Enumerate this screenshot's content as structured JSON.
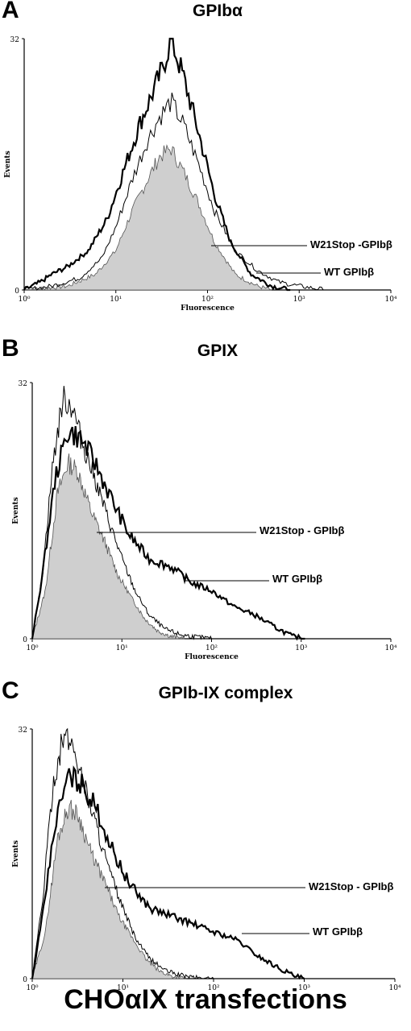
{
  "panels": [
    {
      "letter": "A",
      "title": "GPIbα",
      "ylabel": "Events",
      "xlabel": "Fluorescence",
      "annotations": [
        "W21Stop -GPIbβ",
        "WT GPIbβ"
      ]
    },
    {
      "letter": "B",
      "title": "GPIX",
      "ylabel": "Events",
      "xlabel": "Fluorescence",
      "annotations": [
        "W21Stop - GPIbβ",
        "WT GPIbβ"
      ]
    },
    {
      "letter": "C",
      "title": "GPIb-IX complex",
      "ylabel": "Events",
      "xlabel": "Fluorescence",
      "annotations": [
        "W21Stop - GPIbβ",
        "WT GPIbβ"
      ]
    }
  ],
  "footer": "CHOαIX transfections",
  "colors": {
    "filled": "#cfcfcf",
    "line": "#000000",
    "background": "#ffffff"
  },
  "chart_data": [
    {
      "type": "area",
      "title": "GPIbα",
      "xlabel": "Fluorescence",
      "ylabel": "Events",
      "xscale": "log",
      "xlim": [
        1,
        10000
      ],
      "ylim": [
        0,
        32
      ],
      "x_tick_labels": [
        "10⁰",
        "10¹",
        "10²",
        "10³",
        "10⁴"
      ],
      "y_tick_labels": [
        "0",
        "32"
      ],
      "series": [
        {
          "name": "W21Stop -GPIbβ",
          "style": "thick line",
          "x": [
            1,
            1.5,
            2,
            3,
            5,
            8,
            12,
            18,
            25,
            32,
            40,
            55,
            80,
            120,
            180,
            300,
            500,
            800
          ],
          "y": [
            0,
            1,
            2,
            3,
            5,
            9,
            15,
            21,
            25,
            28,
            32,
            27,
            20,
            12,
            6,
            2,
            0.5,
            0
          ]
        },
        {
          "name": "WT GPIbβ",
          "style": "thin line",
          "x": [
            1,
            2,
            4,
            7,
            10,
            15,
            22,
            30,
            40,
            55,
            80,
            120,
            200,
            350,
            600,
            1000,
            1500,
            2000
          ],
          "y": [
            0,
            0.5,
            1.5,
            4,
            8,
            14,
            19,
            22,
            24,
            21,
            16,
            10,
            5,
            2.5,
            1,
            0.5,
            0.2,
            0
          ]
        },
        {
          "name": "filled",
          "style": "shaded area",
          "x": [
            1,
            3,
            6,
            10,
            15,
            22,
            30,
            40,
            55,
            80,
            120,
            200,
            350,
            500
          ],
          "y": [
            0,
            0.5,
            2,
            5,
            10,
            14,
            17,
            18,
            15,
            11,
            6,
            2,
            0.5,
            0
          ]
        }
      ]
    },
    {
      "type": "area",
      "title": "GPIX",
      "xlabel": "Fluorescence",
      "ylabel": "Events",
      "xscale": "log",
      "xlim": [
        1,
        10000
      ],
      "ylim": [
        0,
        32
      ],
      "x_tick_labels": [
        "10⁰",
        "10¹",
        "10²",
        "10³",
        "10⁴"
      ],
      "y_tick_labels": [
        "0",
        "32"
      ],
      "series": [
        {
          "name": "W21Stop - GPIbβ",
          "style": "thick line",
          "x": [
            1,
            1.3,
            1.8,
            2.5,
            3.5,
            5,
            8,
            12,
            20,
            35,
            60,
            100,
            180,
            300,
            500,
            800,
            1100
          ],
          "y": [
            0,
            8,
            20,
            26,
            25,
            22,
            17,
            13,
            10,
            9,
            7,
            6,
            4,
            3,
            1.5,
            0.3,
            0
          ]
        },
        {
          "name": "WT GPIbβ",
          "style": "thin line",
          "x": [
            1,
            1.3,
            1.7,
            2.2,
            2.8,
            3.5,
            5,
            7,
            10,
            14,
            20,
            30,
            45,
            70,
            100
          ],
          "y": [
            0,
            8,
            22,
            30,
            29,
            25,
            20,
            15,
            10,
            6,
            3,
            1.2,
            0.5,
            0.2,
            0
          ]
        },
        {
          "name": "filled",
          "style": "shaded area",
          "x": [
            1,
            1.4,
            1.9,
            2.5,
            3.2,
            4.5,
            6.5,
            9,
            13,
            18,
            25,
            35,
            50
          ],
          "y": [
            0,
            6,
            18,
            22,
            21,
            16,
            12,
            8,
            5,
            2.5,
            1,
            0.3,
            0
          ]
        }
      ]
    },
    {
      "type": "area",
      "title": "GPIb-IX complex",
      "xlabel": "Fluorescence",
      "ylabel": "Events",
      "xscale": "log",
      "xlim": [
        1,
        10000
      ],
      "ylim": [
        0,
        32
      ],
      "x_tick_labels": [
        "10⁰",
        "10¹",
        "10²",
        "10³",
        "10⁴"
      ],
      "y_tick_labels": [
        "0",
        "32"
      ],
      "series": [
        {
          "name": "W21Stop - GPIbβ",
          "style": "thick line",
          "x": [
            1,
            1.3,
            1.8,
            2.5,
            3.5,
            5,
            8,
            12,
            20,
            35,
            60,
            100,
            180,
            300,
            500,
            800,
            1000
          ],
          "y": [
            0,
            8,
            20,
            26,
            25,
            22,
            16,
            12,
            9,
            8,
            7,
            6,
            5,
            3,
            1.5,
            0.3,
            0
          ]
        },
        {
          "name": "WT GPIbβ",
          "style": "thin line",
          "x": [
            1,
            1.3,
            1.7,
            2.2,
            2.8,
            3.5,
            5,
            7,
            10,
            14,
            20,
            30,
            45,
            70,
            100
          ],
          "y": [
            0,
            10,
            25,
            31,
            30,
            26,
            20,
            14,
            9,
            5,
            2.5,
            1,
            0.4,
            0.1,
            0
          ]
        },
        {
          "name": "filled",
          "style": "shaded area",
          "x": [
            1,
            1.4,
            1.9,
            2.5,
            3.2,
            4.5,
            6.5,
            9,
            13,
            18,
            25,
            35,
            50
          ],
          "y": [
            0,
            6,
            18,
            22,
            21,
            16,
            12,
            8,
            5,
            2.5,
            1,
            0.3,
            0
          ]
        }
      ]
    }
  ]
}
